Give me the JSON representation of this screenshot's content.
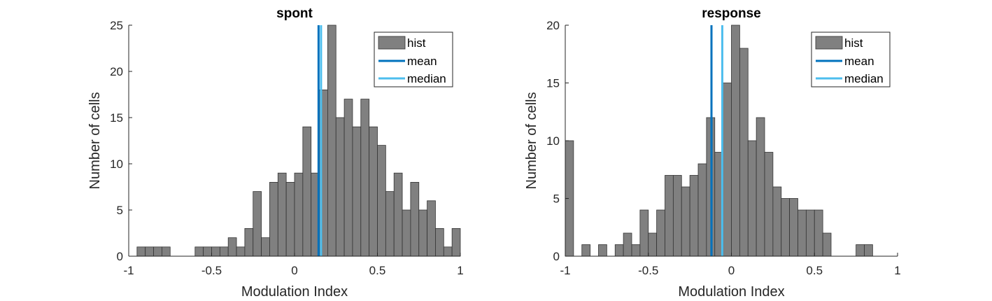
{
  "chart_data": [
    {
      "type": "bar",
      "title": "spont",
      "xlabel": "Modulation Index",
      "ylabel": "Number of cells",
      "xlim": [
        -1,
        1
      ],
      "ylim": [
        0,
        25
      ],
      "xticks": [
        -1,
        -0.5,
        0,
        0.5,
        1
      ],
      "xtick_labels": [
        "-1",
        "-0.5",
        "0",
        "0.5",
        "1"
      ],
      "yticks": [
        0,
        5,
        10,
        15,
        20,
        25
      ],
      "ytick_labels": [
        "0",
        "5",
        "10",
        "15",
        "20",
        "25"
      ],
      "bin_edges_start": -0.95,
      "bin_width": 0.05,
      "counts": [
        1,
        1,
        1,
        1,
        0,
        0,
        0,
        1,
        1,
        1,
        1,
        2,
        1,
        3,
        7,
        2,
        8,
        9,
        8,
        9,
        14,
        9,
        18,
        25,
        15,
        17,
        14,
        17,
        14,
        12,
        7,
        9,
        5,
        8,
        5,
        6,
        3,
        1,
        3
      ],
      "mean": 0.145,
      "median": 0.16,
      "legend": [
        "hist",
        "mean",
        "median"
      ],
      "legend_position": "top-right",
      "grid": false
    },
    {
      "type": "bar",
      "title": "response",
      "xlabel": "Modulation Index",
      "ylabel": "Number of cells",
      "xlim": [
        -1,
        1
      ],
      "ylim": [
        0,
        20
      ],
      "xticks": [
        -1,
        -0.5,
        0,
        0.5,
        1
      ],
      "xtick_labels": [
        "-1",
        "-0.5",
        "0",
        "0.5",
        "1"
      ],
      "yticks": [
        0,
        5,
        10,
        15,
        20
      ],
      "ytick_labels": [
        "0",
        "5",
        "10",
        "15",
        "20"
      ],
      "bin_edges_start": -1.0,
      "bin_width": 0.05,
      "counts": [
        10,
        0,
        1,
        0,
        1,
        0,
        1,
        2,
        1,
        4,
        2,
        4,
        7,
        7,
        6,
        7,
        8,
        12,
        9,
        15,
        20,
        18,
        10,
        12,
        9,
        6,
        5,
        5,
        4,
        4,
        4,
        2,
        0,
        0,
        0,
        1,
        1
      ],
      "mean": -0.12,
      "median": -0.055,
      "legend": [
        "hist",
        "mean",
        "median"
      ],
      "legend_position": "top-right",
      "grid": false
    }
  ],
  "colors": {
    "bar_fill": "#808080",
    "bar_edge": "#333333",
    "mean_line": "#0072bd",
    "median_line": "#4dbeee",
    "axis": "#262626"
  }
}
